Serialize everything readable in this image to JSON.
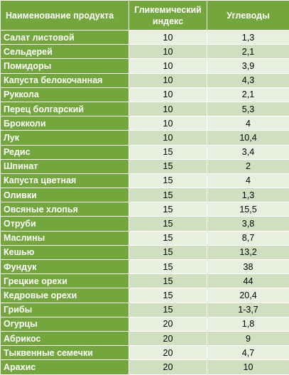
{
  "header": {
    "name": "Наименование продукта",
    "gi": "Гликемический индекс",
    "carbs": "Углеводы"
  },
  "rows": [
    {
      "name": "Салат листовой",
      "gi": "10",
      "carbs": "1,3"
    },
    {
      "name": "Сельдерей",
      "gi": "10",
      "carbs": "2,1"
    },
    {
      "name": "Помидоры",
      "gi": "10",
      "carbs": "3,9"
    },
    {
      "name": "Капуста белокочанная",
      "gi": "10",
      "carbs": "4,3"
    },
    {
      "name": "Руккола",
      "gi": "10",
      "carbs": "2,1"
    },
    {
      "name": "Перец болгарский",
      "gi": "10",
      "carbs": "5,3"
    },
    {
      "name": "Брокколи",
      "gi": "10",
      "carbs": "4"
    },
    {
      "name": "Лук",
      "gi": "10",
      "carbs": "10,4"
    },
    {
      "name": "Редис",
      "gi": "15",
      "carbs": "3,4"
    },
    {
      "name": "Шпинат",
      "gi": "15",
      "carbs": "2"
    },
    {
      "name": "Капуста цветная",
      "gi": "15",
      "carbs": "4"
    },
    {
      "name": "Оливки",
      "gi": "15",
      "carbs": "1,3"
    },
    {
      "name": "Овсяные хлопья",
      "gi": "15",
      "carbs": "15,5"
    },
    {
      "name": "Отруби",
      "gi": "15",
      "carbs": "3,8"
    },
    {
      "name": "Маслины",
      "gi": "15",
      "carbs": "8,7"
    },
    {
      "name": "Кешью",
      "gi": "15",
      "carbs": "13,2"
    },
    {
      "name": "Фундук",
      "gi": "15",
      "carbs": "38"
    },
    {
      "name": "Грецкие орехи",
      "gi": "15",
      "carbs": "44"
    },
    {
      "name": "Кедровые орехи",
      "gi": "15",
      "carbs": "20,4"
    },
    {
      "name": "Грибы",
      "gi": "15",
      "carbs": "1-3,7"
    },
    {
      "name": "Огурцы",
      "gi": "20",
      "carbs": "1,8"
    },
    {
      "name": "Абрикос",
      "gi": "20",
      "carbs": "9"
    },
    {
      "name": "Тыквенные семечки",
      "gi": "20",
      "carbs": "4,7"
    },
    {
      "name": "Арахис",
      "gi": "20",
      "carbs": "10"
    }
  ]
}
